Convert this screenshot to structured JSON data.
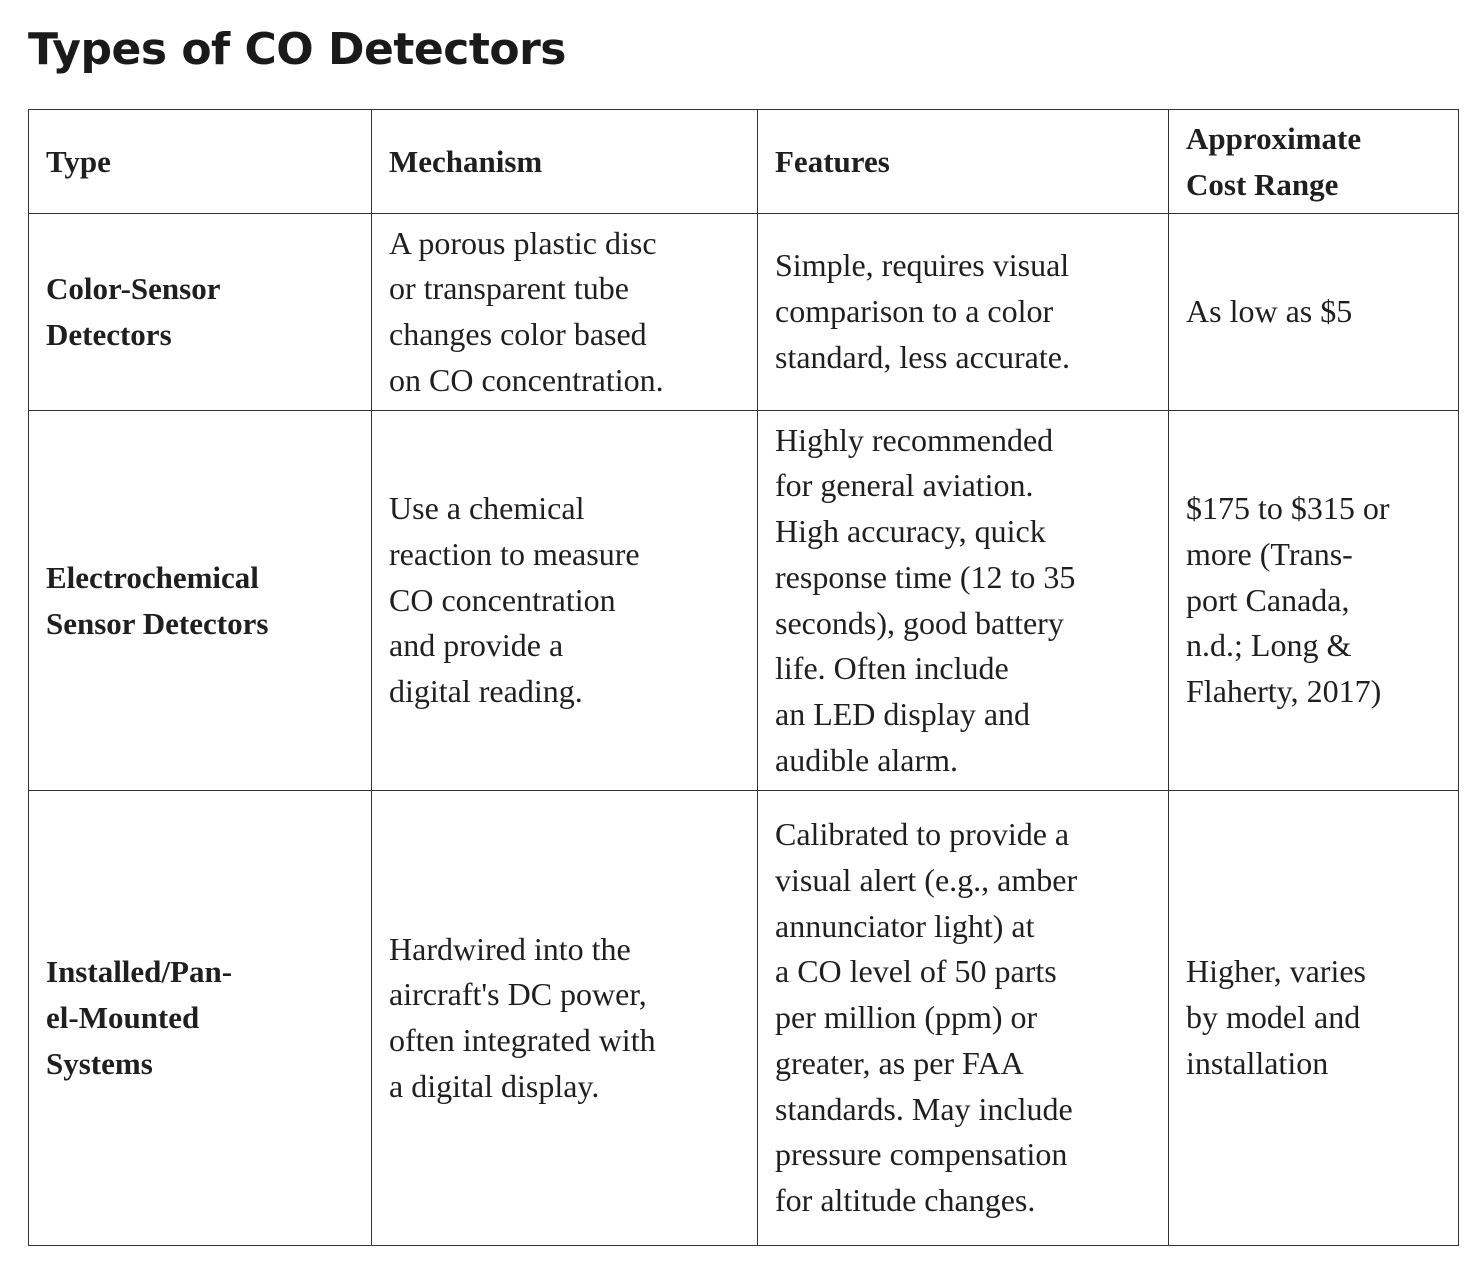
{
  "title": "Types of CO Detectors",
  "table": {
    "header": [
      [
        "Type"
      ],
      [
        "Mechanism"
      ],
      [
        "Features"
      ],
      [
        "Approximate",
        "Cost Range"
      ]
    ],
    "rows": [
      [
        [
          "Color-Sensor",
          "Detectors"
        ],
        [
          "A porous plastic disc",
          "or transparent tube",
          "changes color based",
          "on CO concentration."
        ],
        [
          "Simple, requires visual",
          "comparison to a color",
          "standard, less accurate."
        ],
        [
          "As low as $5"
        ]
      ],
      [
        [
          "Electrochemical",
          "Sensor Detectors"
        ],
        [
          "Use a chemical",
          "reaction to measure",
          "CO concentration",
          "and provide a",
          "digital reading."
        ],
        [
          "Highly recommended",
          "for general aviation.",
          "High accuracy, quick",
          "response time (12 to 35",
          "seconds), good battery",
          "life. Often include",
          "an LED display and",
          "audible alarm."
        ],
        [
          "$175 to $315 or",
          "more (Trans-",
          "port Canada,",
          "n.d.; Long &",
          "Flaherty, 2017)"
        ]
      ],
      [
        [
          "Installed/Pan-",
          "el-Mounted",
          "Systems"
        ],
        [
          "Hardwired into the",
          "aircraft's DC power,",
          "often integrated with",
          "a digital display."
        ],
        [
          "Calibrated to provide a",
          "visual alert (e.g., amber",
          "annunciator light) at",
          "a CO level of 50 parts",
          "per million (ppm) or",
          "greater, as per FAA",
          "standards. May include",
          "pressure compensation",
          "for altitude changes."
        ],
        [
          "Higher, varies",
          "by model and",
          "installation"
        ]
      ]
    ]
  }
}
